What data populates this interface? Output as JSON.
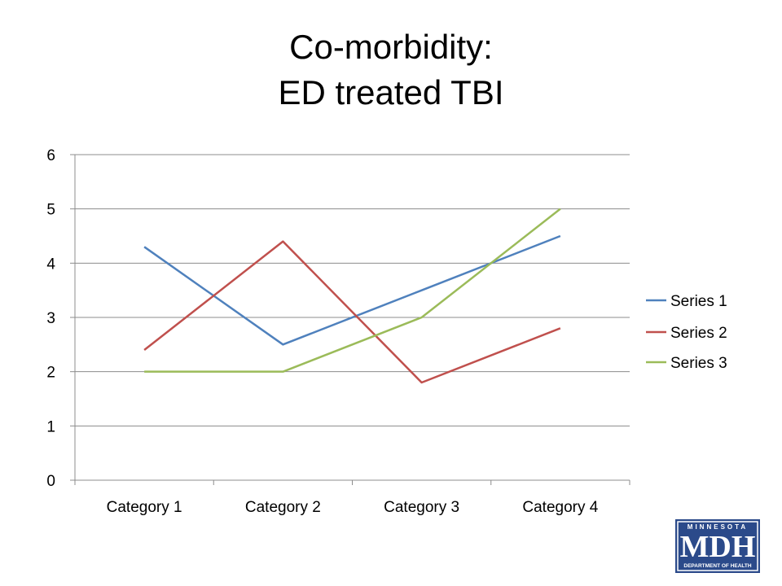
{
  "slide": {
    "title_line1": "Co-morbidity:",
    "title_line2": "ED treated TBI"
  },
  "logo": {
    "top_text": "MINNESOTA",
    "main_text": "MDH",
    "bottom_text": "DEPARTMENT OF HEALTH",
    "color": "#2b4a8a"
  },
  "chart_data": {
    "type": "line",
    "categories": [
      "Category 1",
      "Category 2",
      "Category 3",
      "Category 4"
    ],
    "series": [
      {
        "name": "Series 1",
        "values": [
          4.3,
          2.5,
          3.5,
          4.5
        ],
        "color": "#4f81bd"
      },
      {
        "name": "Series 2",
        "values": [
          2.4,
          4.4,
          1.8,
          2.8
        ],
        "color": "#c0504d"
      },
      {
        "name": "Series 3",
        "values": [
          2,
          2,
          3,
          5
        ],
        "color": "#9bbb59"
      }
    ],
    "ylim": [
      0,
      6
    ],
    "yticks": [
      0,
      1,
      2,
      3,
      4,
      5,
      6
    ],
    "grid": true,
    "legend": "right"
  }
}
